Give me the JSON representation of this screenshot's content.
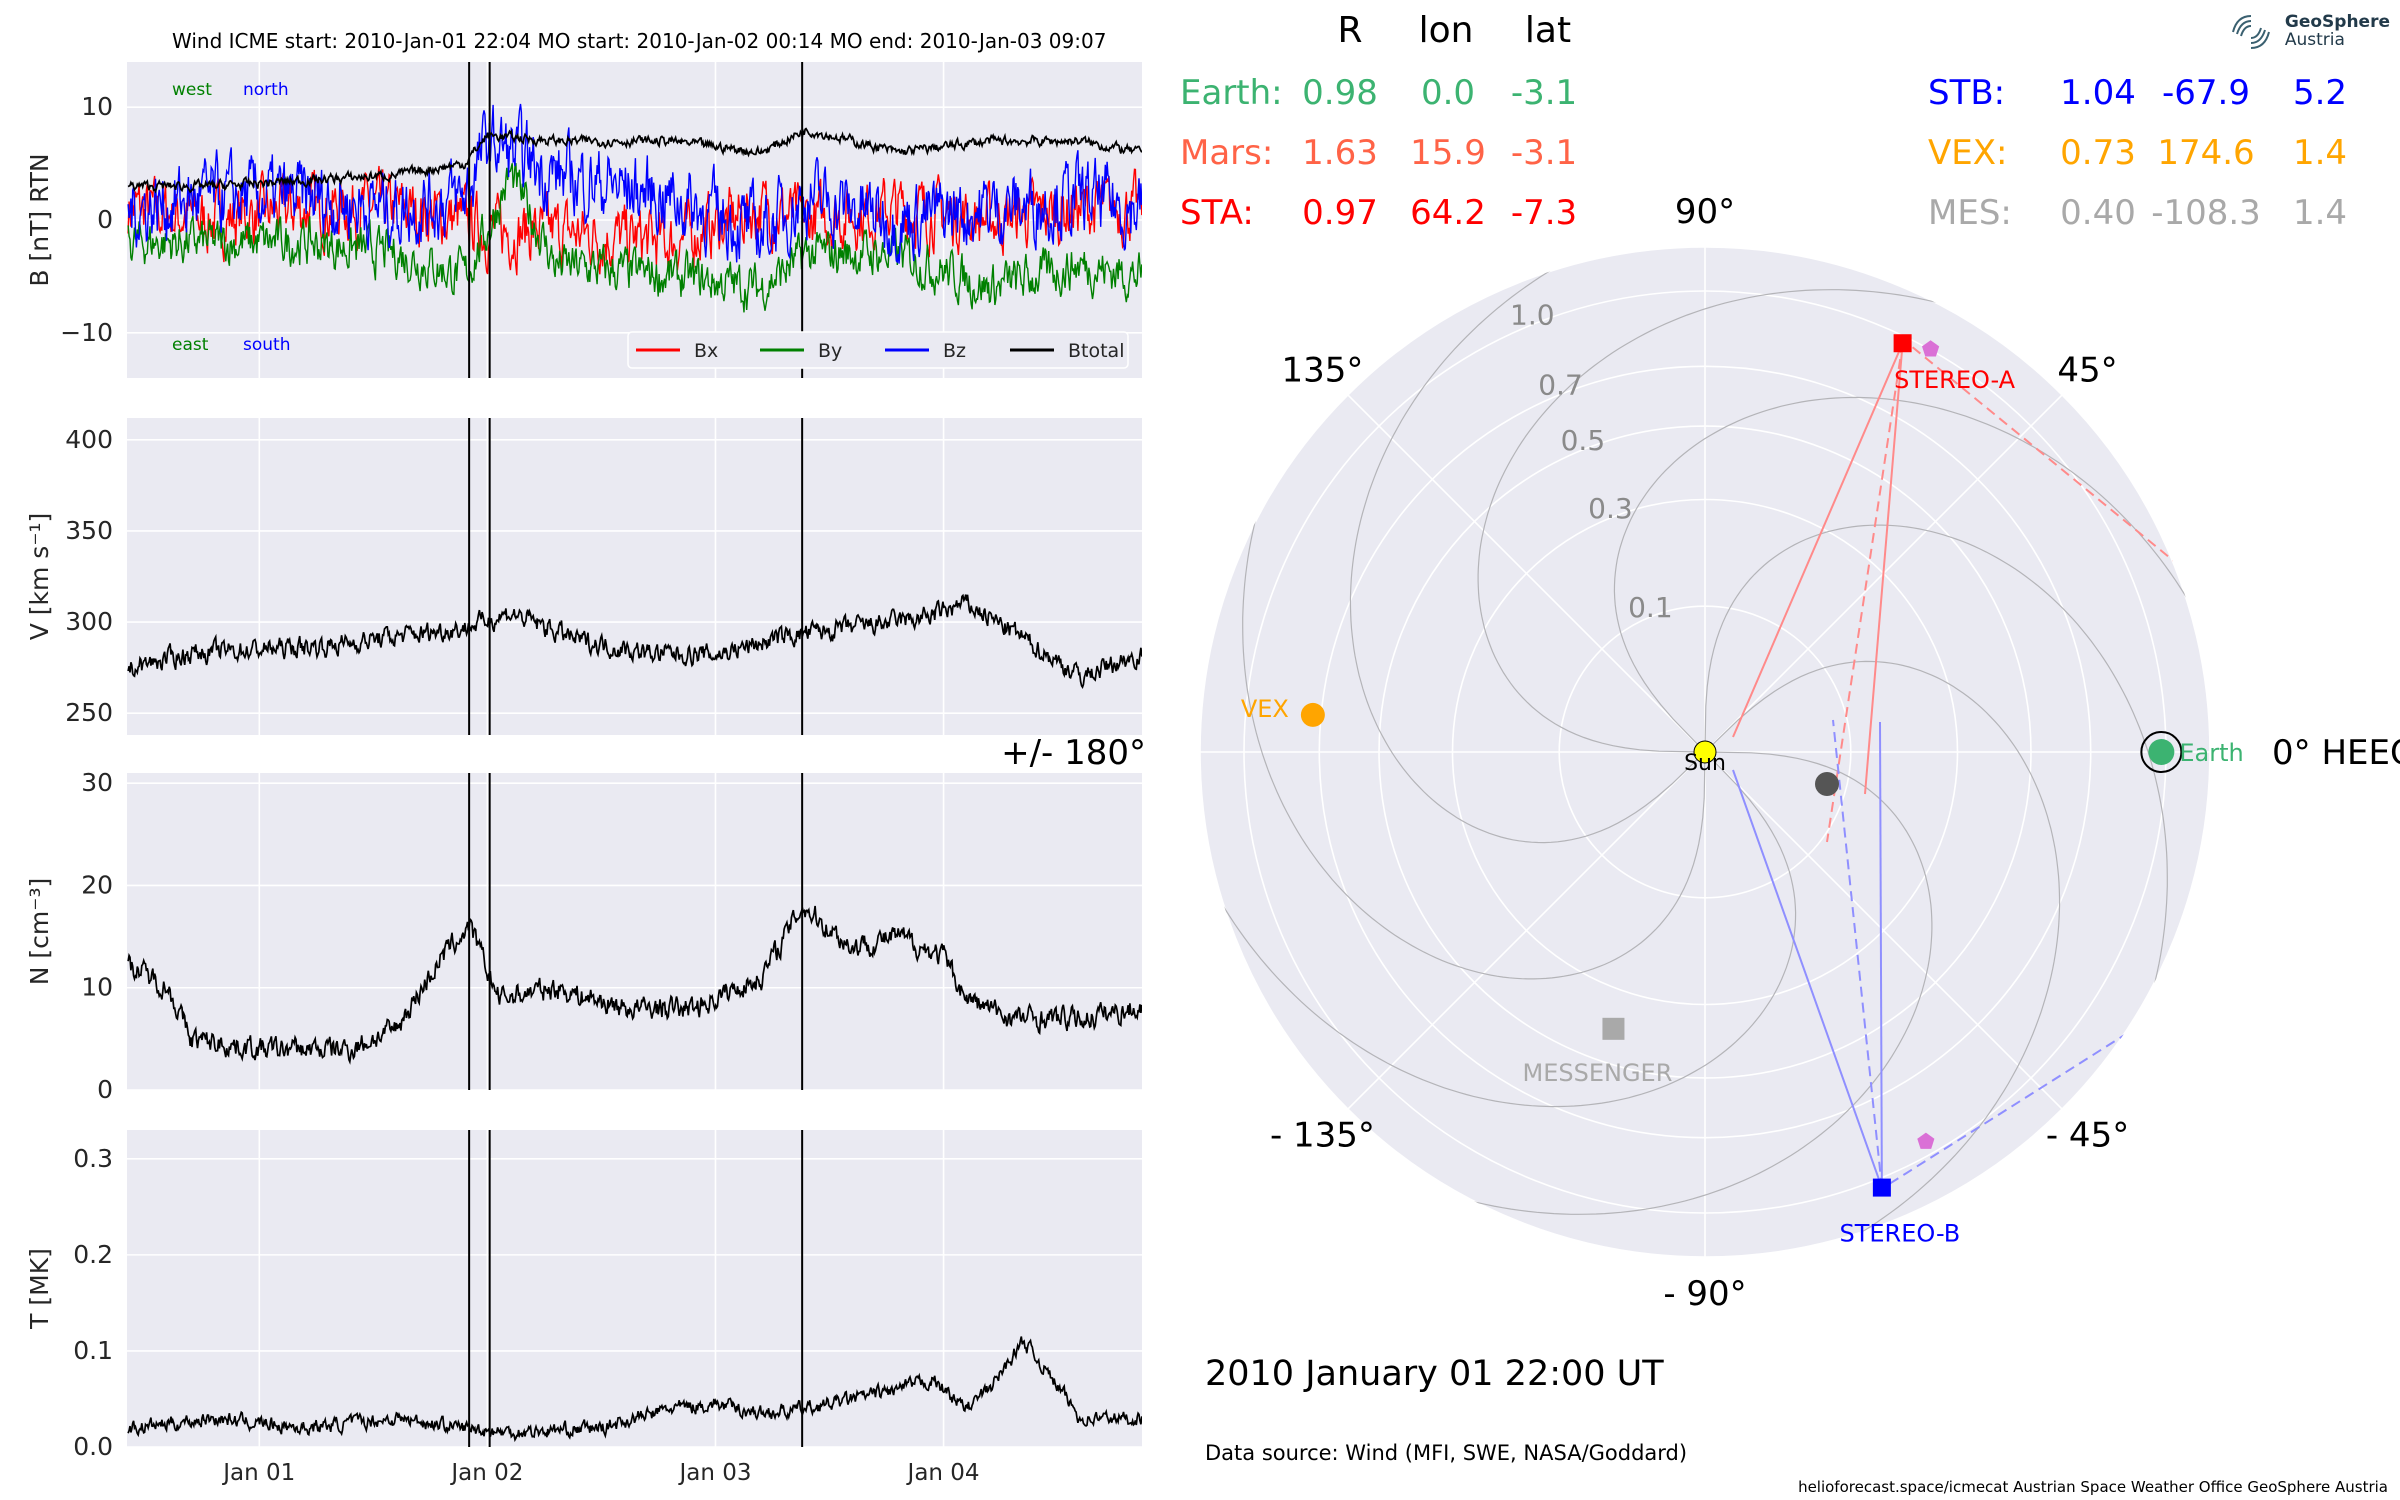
{
  "timeseries": {
    "header": "Wind    ICME start: 2010-Jan-01 22:04   MO start: 2010-Jan-02 00:14   MO end: 2010-Jan-03 09:07",
    "x_ticks": [
      "Jan 01",
      "Jan 02",
      "Jan 03",
      "Jan 04"
    ],
    "event_lines_day": [
      1.92,
      2.01,
      3.38
    ],
    "panels": [
      {
        "ylabel": "B [nT] RTN",
        "yticks": [
          "10",
          "0",
          "−10"
        ],
        "annot": {
          "west": "west",
          "north": "north",
          "east": "east",
          "south": "south"
        }
      },
      {
        "ylabel": "V [km s⁻¹]",
        "yticks": [
          "400",
          "350",
          "300",
          "250"
        ]
      },
      {
        "ylabel": "N [cm⁻³]",
        "yticks": [
          "30",
          "20",
          "10",
          "0"
        ]
      },
      {
        "ylabel": "T [MK]",
        "yticks": [
          "0.3",
          "0.2",
          "0.1",
          "0.0"
        ]
      }
    ],
    "legend": [
      "Bx",
      "By",
      "Bz",
      "Btotal"
    ]
  },
  "chart_data": [
    {
      "type": "line",
      "title": "Wind    ICME start: 2010-Jan-01 22:04   MO start: 2010-Jan-02 00:14   MO end: 2010-Jan-03 09:07",
      "ylabel": "B [nT] RTN",
      "ylim": [
        -14,
        14
      ],
      "x_unit": "days of January 2010",
      "xlim": [
        0.42,
        4.87
      ],
      "series": [
        {
          "name": "Bx",
          "color": "#ff0000",
          "x": [
            0.45,
            0.8,
            1.2,
            1.6,
            1.9,
            2.0,
            2.3,
            2.8,
            3.2,
            3.4,
            3.8,
            4.2,
            4.6,
            4.85
          ],
          "values": [
            1,
            0,
            1,
            1,
            0,
            -1,
            -1,
            -2,
            1,
            0,
            1,
            0,
            1,
            1
          ]
        },
        {
          "name": "By",
          "color": "#008000",
          "x": [
            0.45,
            0.8,
            1.2,
            1.6,
            1.9,
            2.0,
            2.1,
            2.3,
            2.8,
            3.2,
            3.4,
            3.8,
            4.2,
            4.6,
            4.85
          ],
          "values": [
            -2,
            -2,
            -2,
            -3,
            -5,
            -1,
            4,
            -4,
            -5,
            -6,
            -3,
            -3,
            -6,
            -4,
            -5
          ]
        },
        {
          "name": "Bz",
          "color": "#0000ff",
          "x": [
            0.45,
            0.8,
            1.2,
            1.6,
            1.9,
            2.0,
            2.3,
            2.8,
            3.2,
            3.4,
            3.8,
            4.2,
            4.6,
            4.85
          ],
          "values": [
            1,
            2,
            2,
            1,
            2,
            7,
            4,
            2,
            -1,
            2,
            0,
            1,
            2,
            1
          ]
        },
        {
          "name": "Btotal",
          "color": "#000000",
          "x": [
            0.45,
            0.8,
            1.2,
            1.6,
            1.9,
            2.0,
            2.3,
            2.8,
            3.2,
            3.4,
            3.8,
            4.2,
            4.6,
            4.85
          ],
          "values": [
            3,
            3,
            3.5,
            4,
            5,
            7.5,
            7,
            7,
            6,
            8,
            6,
            7,
            7,
            6
          ]
        }
      ]
    },
    {
      "type": "line",
      "ylabel": "V [km s⁻¹]",
      "ylim": [
        238,
        412
      ],
      "x_unit": "days of January 2010",
      "series": [
        {
          "name": "",
          "color": "#000000",
          "x": [
            0.45,
            0.7,
            1.0,
            1.3,
            1.6,
            1.9,
            2.1,
            2.4,
            2.7,
            3.0,
            3.3,
            3.6,
            3.9,
            4.1,
            4.3,
            4.6,
            4.85
          ],
          "values": [
            275,
            283,
            285,
            287,
            292,
            297,
            305,
            290,
            283,
            282,
            292,
            297,
            302,
            310,
            295,
            270,
            282
          ]
        }
      ]
    },
    {
      "type": "line",
      "ylabel": "N [cm⁻³]",
      "ylim": [
        0,
        31
      ],
      "x_unit": "days of January 2010",
      "series": [
        {
          "name": "",
          "color": "#000000",
          "x": [
            0.45,
            0.6,
            0.7,
            1.0,
            1.4,
            1.6,
            1.8,
            1.92,
            2.05,
            2.3,
            2.6,
            2.9,
            3.2,
            3.38,
            3.6,
            3.8,
            4.0,
            4.1,
            4.3,
            4.6,
            4.85
          ],
          "values": [
            12,
            10,
            5,
            4,
            4,
            6,
            13,
            16,
            9,
            10,
            8,
            8,
            11,
            18,
            14,
            15,
            13,
            9,
            7,
            7,
            8
          ]
        }
      ]
    },
    {
      "type": "line",
      "ylabel": "T [MK]",
      "ylim": [
        0,
        0.33
      ],
      "x_unit": "days of January 2010",
      "series": [
        {
          "name": "",
          "color": "#000000",
          "x": [
            0.45,
            0.8,
            1.2,
            1.6,
            1.9,
            2.1,
            2.5,
            2.8,
            3.0,
            3.2,
            3.4,
            3.6,
            3.8,
            3.95,
            4.1,
            4.2,
            4.35,
            4.45,
            4.6,
            4.85
          ],
          "values": [
            0.02,
            0.03,
            0.02,
            0.03,
            0.02,
            0.015,
            0.02,
            0.04,
            0.045,
            0.035,
            0.04,
            0.05,
            0.06,
            0.07,
            0.04,
            0.06,
            0.11,
            0.08,
            0.03,
            0.03
          ]
        }
      ]
    },
    {
      "type": "scatter",
      "subtype": "polar",
      "r_ticks": [
        "0.1",
        "0.3",
        "0.5",
        "0.7",
        "1.0"
      ],
      "angle_labels": [
        "0° HEEQ",
        "45°",
        "90°",
        "135°",
        "+/- 180°",
        "- 135°",
        "- 90°",
        "- 45°"
      ],
      "bodies": [
        {
          "label": "Sun",
          "r": 0,
          "lon": 0,
          "color": "#ffff00",
          "marker": "circle"
        },
        {
          "label": "Earth",
          "r": 0.98,
          "lon": 0.0,
          "color": "#3cb371",
          "marker": "circle"
        },
        {
          "label": "STEREO-A",
          "r": 0.97,
          "lon": 64.2,
          "color": "#ff0000",
          "marker": "square"
        },
        {
          "label": "STEREO-B",
          "r": 1.04,
          "lon": -67.9,
          "color": "#0000ff",
          "marker": "square"
        },
        {
          "label": "VEX",
          "r": 0.73,
          "lon": 174.6,
          "color": "#ffa500",
          "marker": "circle"
        },
        {
          "label": "MESSENGER",
          "r": 0.4,
          "lon": -108.3,
          "color": "#a9a9a9",
          "marker": "square"
        },
        {
          "label": "",
          "r": 1.63,
          "lon": 15.9,
          "color": "#555555",
          "marker": "circle",
          "note": "Mars"
        }
      ],
      "table": {
        "headers": [
          "R",
          "lon",
          "lat"
        ],
        "left_rows": [
          {
            "name": "Earth:",
            "R": "0.98",
            "lon": "0.0",
            "lat": "-3.1",
            "color": "#3cb371"
          },
          {
            "name": "Mars:",
            "R": "1.63",
            "lon": "15.9",
            "lat": "-3.1",
            "color": "#ff6347"
          },
          {
            "name": "STA:",
            "R": "0.97",
            "lon": "64.2",
            "lat": "-7.3",
            "color": "#ff0000"
          }
        ],
        "right_rows": [
          {
            "name": "STB:",
            "R": "1.04",
            "lon": "-67.9",
            "lat": "5.2",
            "color": "#0000ff"
          },
          {
            "name": "VEX:",
            "R": "0.73",
            "lon": "174.6",
            "lat": "1.4",
            "color": "#ffa500"
          },
          {
            "name": "MES:",
            "R": "0.40",
            "lon": "-108.3",
            "lat": "1.4",
            "color": "#a9a9a9"
          }
        ]
      }
    }
  ],
  "footer": {
    "datetime": "2010 January 01  22:00 UT",
    "source": "Data source: Wind (MFI, SWE, NASA/Goddard)",
    "credits": "helioforecast.space/icmecat   Austrian Space Weather Office   GeoSphere Austria"
  },
  "logo": {
    "line1": "GeoSphere",
    "line2": "Austria"
  }
}
